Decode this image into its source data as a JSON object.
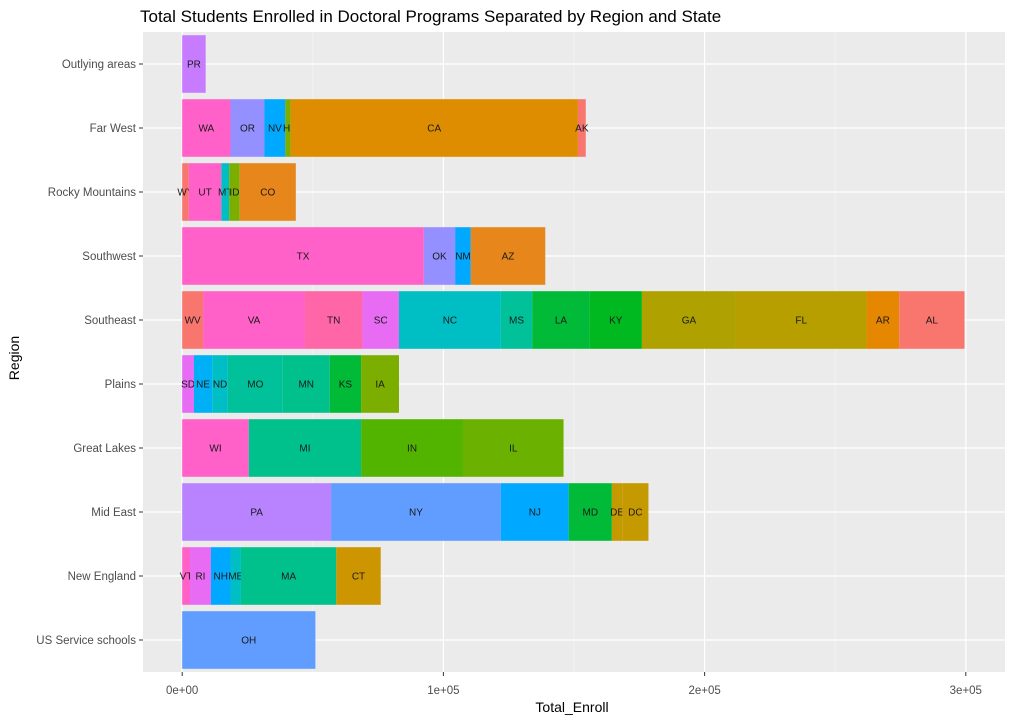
{
  "chart_data": {
    "type": "bar",
    "orientation": "horizontal",
    "stacked": true,
    "title": "Total Students Enrolled in Doctoral Programs Separated by Region and State",
    "xlabel": "Total_Enroll",
    "ylabel": "Region",
    "xlim": [
      -15000,
      315000
    ],
    "x_ticks": [
      0,
      100000,
      200000,
      300000
    ],
    "x_tick_labels": [
      "0e+00",
      "1e+05",
      "2e+05",
      "3e+05"
    ],
    "grid": true,
    "legend": "none",
    "categories": [
      "Outlying areas",
      "Far West",
      "Rocky Mountains",
      "Southwest",
      "Southeast",
      "Plains",
      "Great Lakes",
      "Mid East",
      "New England",
      "US Service schools"
    ],
    "bars": [
      {
        "region": "Outlying areas",
        "segments": [
          {
            "state": "PR",
            "value": 9000,
            "color": "#C77CFF"
          }
        ]
      },
      {
        "region": "Far West",
        "segments": [
          {
            "state": "WA",
            "value": 18500,
            "color": "#FF61C9"
          },
          {
            "state": "OR",
            "value": 13000,
            "color": "#9590FF"
          },
          {
            "state": "NV",
            "value": 8000,
            "color": "#00A9FF"
          },
          {
            "state": "HI",
            "value": 2000,
            "color": "#7CAE00"
          },
          {
            "state": "CA",
            "value": 110000,
            "color": "#DE8C00"
          },
          {
            "state": "AK",
            "value": 3000,
            "color": "#F8766D"
          }
        ]
      },
      {
        "region": "Rocky Mountains",
        "segments": [
          {
            "state": "WY",
            "value": 2500,
            "color": "#F8766D"
          },
          {
            "state": "UT",
            "value": 12500,
            "color": "#FF61C9"
          },
          {
            "state": "MT",
            "value": 3000,
            "color": "#00BFC4"
          },
          {
            "state": "ID",
            "value": 4000,
            "color": "#7CAE00"
          },
          {
            "state": "CO",
            "value": 21500,
            "color": "#E7861B"
          }
        ]
      },
      {
        "region": "Southwest",
        "segments": [
          {
            "state": "TX",
            "value": 92500,
            "color": "#FF61C9"
          },
          {
            "state": "OK",
            "value": 12000,
            "color": "#9590FF"
          },
          {
            "state": "NM",
            "value": 6000,
            "color": "#00A9FF"
          },
          {
            "state": "AZ",
            "value": 28500,
            "color": "#E7861B"
          }
        ]
      },
      {
        "region": "Southeast",
        "segments": [
          {
            "state": "WV",
            "value": 8000,
            "color": "#F8766D"
          },
          {
            "state": "VA",
            "value": 39000,
            "color": "#FF61C9"
          },
          {
            "state": "TN",
            "value": 22000,
            "color": "#FF66A8"
          },
          {
            "state": "SC",
            "value": 14000,
            "color": "#E76BF3"
          },
          {
            "state": "NC",
            "value": 39000,
            "color": "#00BFC4"
          },
          {
            "state": "MS",
            "value": 12000,
            "color": "#00C19A"
          },
          {
            "state": "LA",
            "value": 22000,
            "color": "#00BA38"
          },
          {
            "state": "KY",
            "value": 20000,
            "color": "#00B81F"
          },
          {
            "state": "GA",
            "value": 36000,
            "color": "#AFA100"
          },
          {
            "state": "FL",
            "value": 50000,
            "color": "#B79F00"
          },
          {
            "state": "AR",
            "value": 12500,
            "color": "#E58700"
          },
          {
            "state": "AL",
            "value": 25000,
            "color": "#F8766D"
          }
        ]
      },
      {
        "region": "Plains",
        "segments": [
          {
            "state": "SD",
            "value": 4500,
            "color": "#E76BF3"
          },
          {
            "state": "NE",
            "value": 7000,
            "color": "#00B0F6"
          },
          {
            "state": "ND",
            "value": 6000,
            "color": "#00BFC4"
          },
          {
            "state": "MO",
            "value": 21000,
            "color": "#00C19A"
          },
          {
            "state": "MN",
            "value": 18000,
            "color": "#00C08B"
          },
          {
            "state": "KS",
            "value": 12000,
            "color": "#00BA38"
          },
          {
            "state": "IA",
            "value": 14500,
            "color": "#7CAE00"
          }
        ]
      },
      {
        "region": "Great Lakes",
        "segments": [
          {
            "state": "WI",
            "value": 25500,
            "color": "#FF61C9"
          },
          {
            "state": "MI",
            "value": 43000,
            "color": "#00C08B"
          },
          {
            "state": "IN",
            "value": 39000,
            "color": "#53B400"
          },
          {
            "state": "IL",
            "value": 38500,
            "color": "#6BB100"
          }
        ]
      },
      {
        "region": "Mid East",
        "segments": [
          {
            "state": "PA",
            "value": 57000,
            "color": "#B983FF"
          },
          {
            "state": "NY",
            "value": 65000,
            "color": "#619CFF"
          },
          {
            "state": "NJ",
            "value": 26000,
            "color": "#00A9FF"
          },
          {
            "state": "MD",
            "value": 16500,
            "color": "#00BA38"
          },
          {
            "state": "DE",
            "value": 4000,
            "color": "#C49A00"
          },
          {
            "state": "DC",
            "value": 10000,
            "color": "#C49A00"
          }
        ]
      },
      {
        "region": "New England",
        "segments": [
          {
            "state": "VT",
            "value": 3000,
            "color": "#FF61C9"
          },
          {
            "state": "RI",
            "value": 8000,
            "color": "#E76BF3"
          },
          {
            "state": "NH",
            "value": 7500,
            "color": "#00A9FF"
          },
          {
            "state": "ME",
            "value": 4000,
            "color": "#00BFC4"
          },
          {
            "state": "MA",
            "value": 36500,
            "color": "#00C08B"
          },
          {
            "state": "CT",
            "value": 17000,
            "color": "#CD9600"
          }
        ]
      },
      {
        "region": "US Service schools",
        "segments": [
          {
            "state": "OH",
            "value": 51000,
            "color": "#619CFF"
          }
        ]
      }
    ]
  }
}
